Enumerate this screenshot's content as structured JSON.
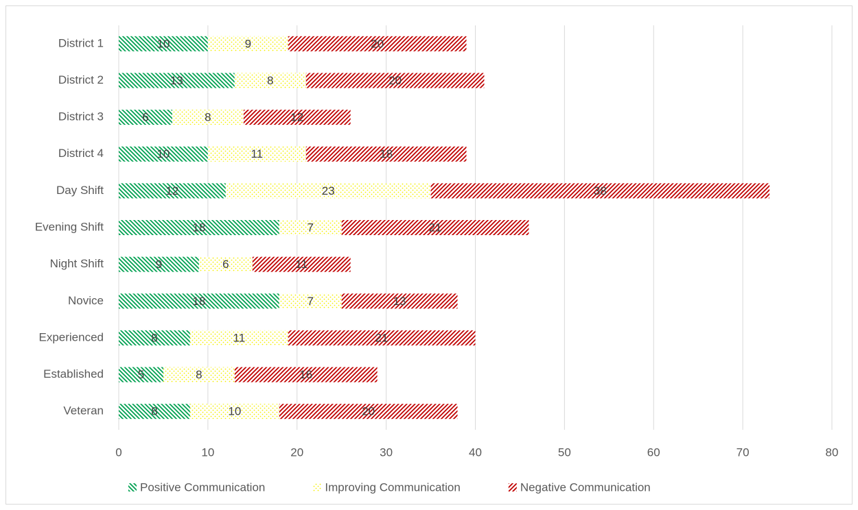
{
  "chart_data": {
    "type": "stacked-bar-horizontal",
    "categories": [
      "District 1",
      "District 2",
      "District 3",
      "District 4",
      "Day Shift",
      "Evening Shift",
      "Night Shift",
      "Novice",
      "Experienced",
      "Established",
      "Veteran"
    ],
    "series": [
      {
        "name": "Positive Communication",
        "color": "#00a050",
        "pattern": "hatch-down",
        "values": [
          10,
          13,
          6,
          10,
          12,
          18,
          9,
          18,
          8,
          5,
          8
        ]
      },
      {
        "name": "Improving Communication",
        "color": "#f5f000",
        "pattern": "dots",
        "values": [
          9,
          8,
          8,
          11,
          23,
          7,
          6,
          7,
          11,
          8,
          10
        ]
      },
      {
        "name": "Negative Communication",
        "color": "#c00000",
        "pattern": "hatch-up",
        "values": [
          20,
          20,
          12,
          18,
          38,
          21,
          11,
          13,
          21,
          16,
          20
        ]
      }
    ],
    "xlim": [
      0,
      80
    ],
    "xticks": [
      0,
      10,
      20,
      30,
      40,
      50,
      60,
      70,
      80
    ],
    "grid": true,
    "legend": "bottom"
  }
}
